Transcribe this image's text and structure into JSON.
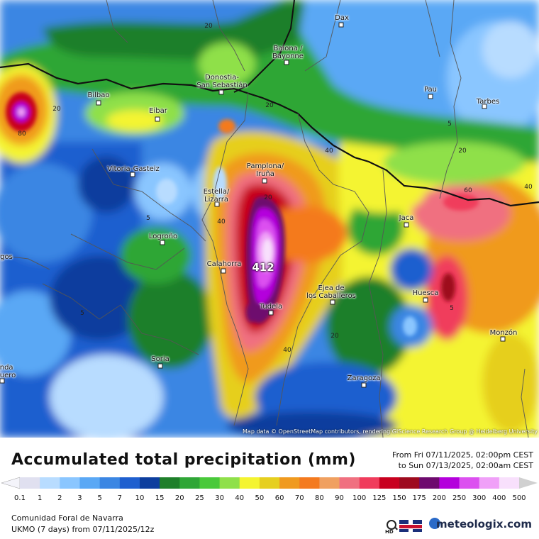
{
  "map": {
    "attribution": "Map data © OpenStreetMap contributors, rendering GIScience Research Group @ Heidelberg University",
    "max_value_label": "412",
    "cities": [
      {
        "name": "Dax"
      },
      {
        "name": "Baiona /\nBayonne"
      },
      {
        "name": "Donostia-\nSan Sebastián"
      },
      {
        "name": "Pau"
      },
      {
        "name": "Tarbes"
      },
      {
        "name": "Bilbao"
      },
      {
        "name": "Eibar"
      },
      {
        "name": "Vitoria-Gasteiz"
      },
      {
        "name": "Pamplona/\nIruña"
      },
      {
        "name": "Estella/\nLizarra"
      },
      {
        "name": "Logroño"
      },
      {
        "name": "Jaca"
      },
      {
        "name": "Calahorra"
      },
      {
        "name": "Ejea de\nlos Caballeros"
      },
      {
        "name": "Huesca"
      },
      {
        "name": "Tudela"
      },
      {
        "name": "Monzón"
      },
      {
        "name": "Soria"
      },
      {
        "name": "Zaragoza"
      },
      {
        "name": "gos"
      },
      {
        "name": "nda\nuero"
      }
    ],
    "contour_labels": [
      "20",
      "20",
      "20",
      "80",
      "40",
      "20",
      "5",
      "40",
      "20",
      "5",
      "60",
      "40",
      "5",
      "20",
      "5",
      "40",
      "20",
      "5"
    ]
  },
  "legend": {
    "title": "Accumulated total precipitation (mm)",
    "period_from": "From Fri 07/11/2025, 02:00pm CEST",
    "period_to": "to Sun 07/13/2025, 02:00am CEST",
    "ticks": [
      "0.1",
      "1",
      "2",
      "3",
      "5",
      "7",
      "10",
      "15",
      "20",
      "25",
      "30",
      "40",
      "50",
      "60",
      "70",
      "80",
      "90",
      "100",
      "125",
      "150",
      "175",
      "200",
      "250",
      "300",
      "400",
      "500"
    ],
    "colors": [
      "#e0e0f0",
      "#b8dcff",
      "#8ac6ff",
      "#5aa8f5",
      "#3b86e3",
      "#1f5fcf",
      "#0d3e9e",
      "#1e7f2a",
      "#2fa636",
      "#49c93a",
      "#8fe04a",
      "#f4f430",
      "#e6cf1e",
      "#f09a1e",
      "#f47a1e",
      "#f0a060",
      "#f07080",
      "#f03c5c",
      "#c8001e",
      "#9e0a1e",
      "#6e0a6e",
      "#b400dc",
      "#dc50f0",
      "#f0a0f8",
      "#f8e0fc",
      "#d0d0d0"
    ]
  },
  "info": {
    "region": "Comunidad Foral de Navarra",
    "model": "UKMO (7 days) from 07/11/2025/12z",
    "brand": "meteologix.com",
    "hd_label": "HD"
  }
}
